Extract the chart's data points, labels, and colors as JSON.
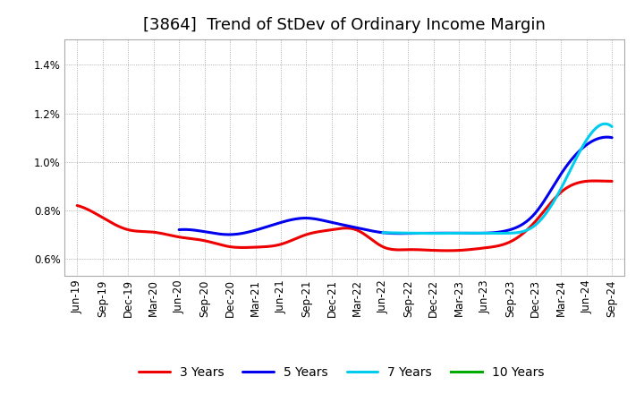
{
  "title": "[3864]  Trend of StDev of Ordinary Income Margin",
  "x_labels": [
    "Jun-19",
    "Sep-19",
    "Dec-19",
    "Mar-20",
    "Jun-20",
    "Sep-20",
    "Dec-20",
    "Mar-21",
    "Jun-21",
    "Sep-21",
    "Dec-21",
    "Mar-22",
    "Jun-22",
    "Sep-22",
    "Dec-22",
    "Mar-23",
    "Jun-23",
    "Sep-23",
    "Dec-23",
    "Mar-24",
    "Jun-24",
    "Sep-24"
  ],
  "ylim": [
    0.0053,
    0.01505
  ],
  "yticks": [
    0.006,
    0.008,
    0.01,
    0.012,
    0.014
  ],
  "ytick_labels": [
    "0.6%",
    "0.8%",
    "1.0%",
    "1.2%",
    "1.4%"
  ],
  "series": {
    "3 Years": {
      "color": "#EE0000",
      "values": [
        0.0082,
        0.0077,
        0.0072,
        0.0071,
        0.0069,
        0.00675,
        0.0065,
        0.00648,
        0.0066,
        0.007,
        0.0072,
        0.00718,
        0.0065,
        0.00638,
        0.00635,
        0.00635,
        0.00645,
        0.0067,
        0.00755,
        0.00875,
        0.0092,
        0.0092
      ]
    },
    "5 Years": {
      "color": "#0000EE",
      "values": [
        null,
        null,
        null,
        null,
        0.0072,
        0.00712,
        0.007,
        0.00718,
        0.0075,
        0.00768,
        0.0075,
        0.00728,
        0.00708,
        0.00705,
        0.00706,
        0.00706,
        0.00706,
        0.0072,
        0.0079,
        0.0095,
        0.0107,
        0.011
      ]
    },
    "7 Years": {
      "color": "#00CCEE",
      "values": [
        null,
        null,
        null,
        null,
        null,
        null,
        null,
        null,
        null,
        null,
        null,
        null,
        0.00708,
        0.00706,
        0.00705,
        0.00706,
        0.00706,
        0.00706,
        0.0074,
        0.0089,
        0.0109,
        0.01145
      ]
    },
    "10 Years": {
      "color": "#00AA00",
      "values": [
        null,
        null,
        null,
        null,
        null,
        null,
        null,
        null,
        null,
        null,
        null,
        null,
        null,
        null,
        null,
        null,
        null,
        null,
        null,
        null,
        null,
        null
      ]
    }
  },
  "legend_order": [
    "3 Years",
    "5 Years",
    "7 Years",
    "10 Years"
  ],
  "background_color": "#FFFFFF",
  "plot_bg_color": "#FFFFFF",
  "grid_color": "#999999",
  "title_fontsize": 13,
  "tick_fontsize": 8.5,
  "legend_fontsize": 10,
  "linewidth": 2.2
}
